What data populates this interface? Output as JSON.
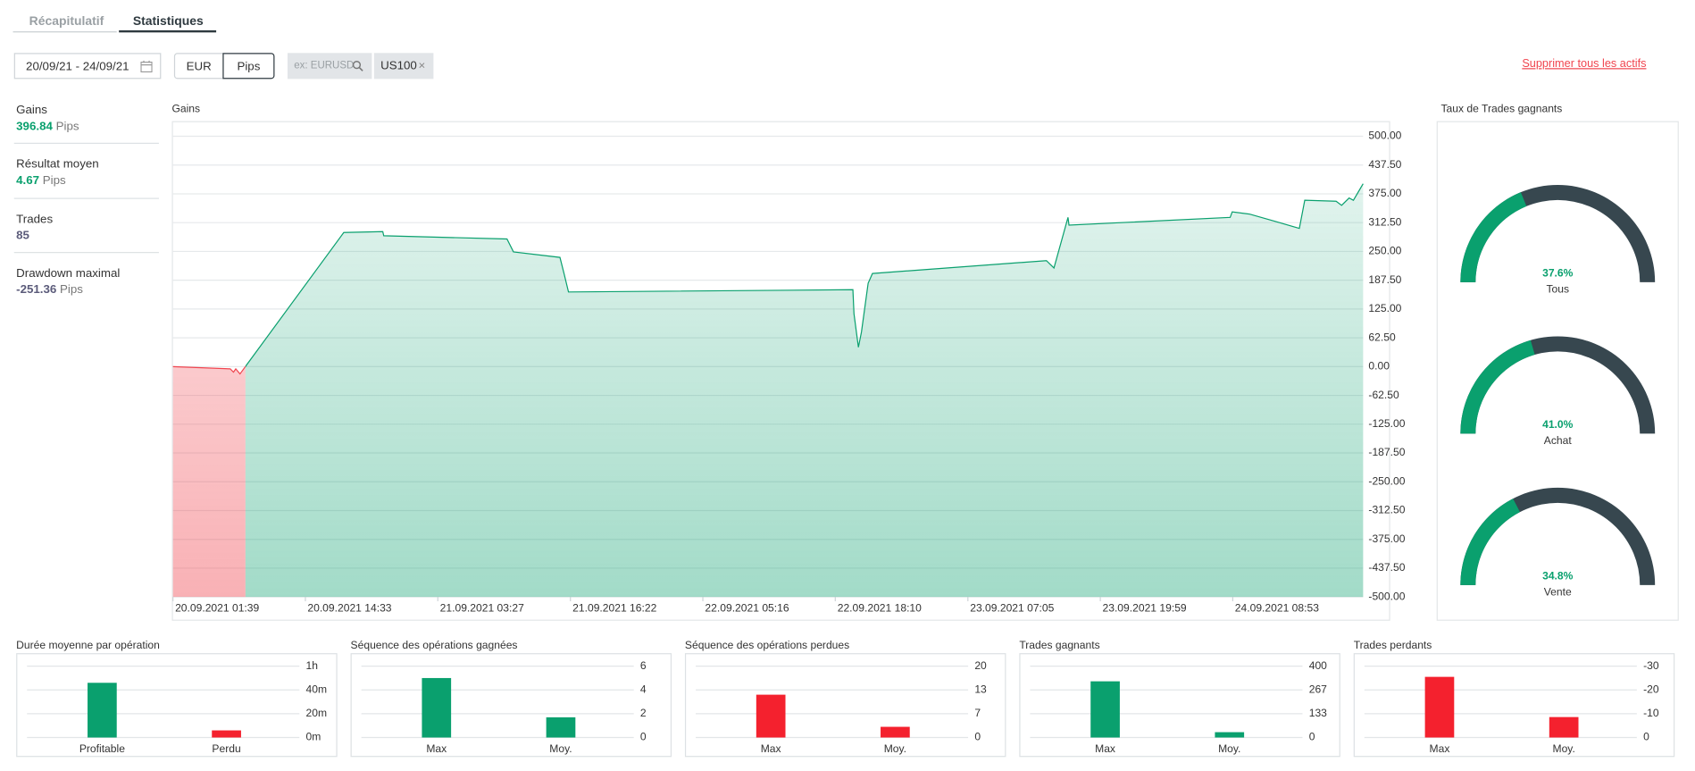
{
  "tabs": [
    "Récapitulatif",
    "Statistiques"
  ],
  "date_range": "20/09/21 - 24/09/21",
  "unit_buttons": [
    "EUR",
    "Pips"
  ],
  "search_placeholder": "ex: EURUSD",
  "filter_tags": [
    "US100"
  ],
  "delete_all": "Supprimer tous les actifs",
  "stats": [
    {
      "label": "Gains",
      "value": "396.84",
      "unit": "Pips",
      "color": "#0aa06e"
    },
    {
      "label": "Résultat moyen",
      "value": "4.67",
      "unit": "Pips",
      "color": "#0aa06e"
    },
    {
      "label": "Trades",
      "value": "85",
      "color": "#5b5b7a"
    },
    {
      "label": "Drawdown maximal",
      "value": "-251.36",
      "unit": "Pips",
      "color": "#5b5b7a"
    }
  ],
  "chart_data": [
    {
      "type": "line",
      "title": "Gains",
      "x": [
        "20.09.2021 01:39",
        "20.09.2021 07:14",
        "20.09.2021 07:33",
        "20.09.2021 07:46",
        "20.09.2021 08:11",
        "20.09.2021 18:17",
        "20.09.2021 22:05",
        "20.09.2021 22:11",
        "21.09.2021 10:11",
        "21.09.2021 10:49",
        "21.09.2021 15:21",
        "21.09.2021 15:46",
        "21.09.2021 16:11",
        "22.09.2021 19:53",
        "22.09.2021 19:59",
        "22.09.2021 20:25",
        "22.09.2021 20:43",
        "22.09.2021 21:22",
        "22.09.2021 21:47",
        "23.09.2021 14:44",
        "23.09.2021 15:28",
        "23.09.2021 16:50",
        "23.09.2021 16:56",
        "24.09.2021 08:38",
        "24.09.2021 08:50",
        "24.09.2021 10:32",
        "24.09.2021 13:04",
        "24.09.2021 15:22",
        "24.09.2021 15:54",
        "24.09.2021 18:57",
        "24.09.2021 19:29",
        "24.09.2021 20:13",
        "24.09.2021 20:38",
        "24.09.2021 21:35"
      ],
      "series": [
        {
          "color": "#0aa06e",
          "negative_color": "#f0454f",
          "values": [
            0,
            -5,
            -12,
            -5,
            -16,
            291,
            293,
            284,
            277,
            249,
            237,
            200,
            162,
            167,
            115,
            42,
            75,
            181,
            202,
            230,
            214,
            324,
            307,
            324,
            336,
            331,
            315,
            300,
            361,
            359,
            350,
            366,
            361,
            396.84
          ]
        }
      ],
      "xlim": [
        "20.09.2021 01:39",
        "24.09.2021 21:35"
      ],
      "xticks": [
        "20.09.2021 01:39",
        "20.09.2021 14:33",
        "21.09.2021 03:27",
        "21.09.2021 16:22",
        "22.09.2021 05:16",
        "22.09.2021 18:10",
        "23.09.2021 07:05",
        "23.09.2021 19:59",
        "24.09.2021 08:53"
      ],
      "ylim": [
        -500,
        500
      ],
      "yticks": [
        {
          "value": 500,
          "label": "500.00"
        },
        {
          "value": 437.5,
          "label": "437.50"
        },
        {
          "value": 375,
          "label": "375.00"
        },
        {
          "value": 312.5,
          "label": "312.50"
        },
        {
          "value": 250,
          "label": "250.00"
        },
        {
          "value": 187.5,
          "label": "187.50"
        },
        {
          "value": 125,
          "label": "125.00"
        },
        {
          "value": 62.5,
          "label": "62.50"
        },
        {
          "value": 0,
          "label": "0.00"
        },
        {
          "value": -62.5,
          "label": "-62.50"
        },
        {
          "value": -125,
          "label": "-125.00"
        },
        {
          "value": -187.5,
          "label": "-187.50"
        },
        {
          "value": -250,
          "label": "-250.00"
        },
        {
          "value": -312.5,
          "label": "-312.50"
        },
        {
          "value": -375,
          "label": "-375.00"
        },
        {
          "value": -437.5,
          "label": "-437.50"
        },
        {
          "value": -500,
          "label": "-500.00"
        }
      ],
      "grid": true
    },
    {
      "type": "gauge",
      "title": "Taux de Trades gagnants",
      "categories": [
        "Tous",
        "Achat",
        "Vente"
      ],
      "values": [
        37.6,
        41.0,
        34.8
      ],
      "value_labels": [
        "37.6%",
        "41.0%",
        "34.8%"
      ],
      "color": "#0aa06e",
      "track_color": "#37474f"
    },
    {
      "type": "bar",
      "title": "Durée moyenne par opération",
      "categories": [
        "Profitable",
        "Perdu"
      ],
      "values": [
        46,
        6
      ],
      "colors": [
        "#0aa06e",
        "#f4212e"
      ],
      "ylim": [
        0,
        60
      ],
      "yticks": [
        {
          "value": 0,
          "label": "0m"
        },
        {
          "value": 20,
          "label": "20m"
        },
        {
          "value": 40,
          "label": "40m"
        },
        {
          "value": 60,
          "label": "1h"
        }
      ],
      "grid": true
    },
    {
      "type": "bar",
      "title": "Séquence des opérations gagnées",
      "categories": [
        "Max",
        "Moy."
      ],
      "values": [
        5,
        1.7
      ],
      "colors": [
        "#0aa06e",
        "#0aa06e"
      ],
      "ylim": [
        0,
        6
      ],
      "yticks": [
        0,
        2,
        4,
        6
      ],
      "grid": true
    },
    {
      "type": "bar",
      "title": "Séquence des opérations perdues",
      "categories": [
        "Max",
        "Moy."
      ],
      "values": [
        12,
        3
      ],
      "colors": [
        "#f4212e",
        "#f4212e"
      ],
      "ylim": [
        0,
        20
      ],
      "yticks": [
        0,
        {
          "value": 6.67,
          "label": "7"
        },
        {
          "value": 13.33,
          "label": "13"
        },
        20
      ],
      "grid": true
    },
    {
      "type": "bar",
      "title": "Trades gagnants",
      "categories": [
        "Max",
        "Moy."
      ],
      "values": [
        315,
        30
      ],
      "colors": [
        "#0aa06e",
        "#0aa06e"
      ],
      "ylim": [
        0,
        400
      ],
      "yticks": [
        0,
        {
          "value": 133.33,
          "label": "133"
        },
        {
          "value": 266.67,
          "label": "267"
        },
        400
      ],
      "grid": true
    },
    {
      "type": "bar",
      "title": "Trades perdants",
      "categories": [
        "Max",
        "Moy."
      ],
      "values": [
        -25.5,
        -8.6
      ],
      "colors": [
        "#f4212e",
        "#f4212e"
      ],
      "ylim": [
        0,
        -30
      ],
      "yticks": [
        0,
        -10,
        -20,
        -30
      ],
      "grid": true
    }
  ]
}
